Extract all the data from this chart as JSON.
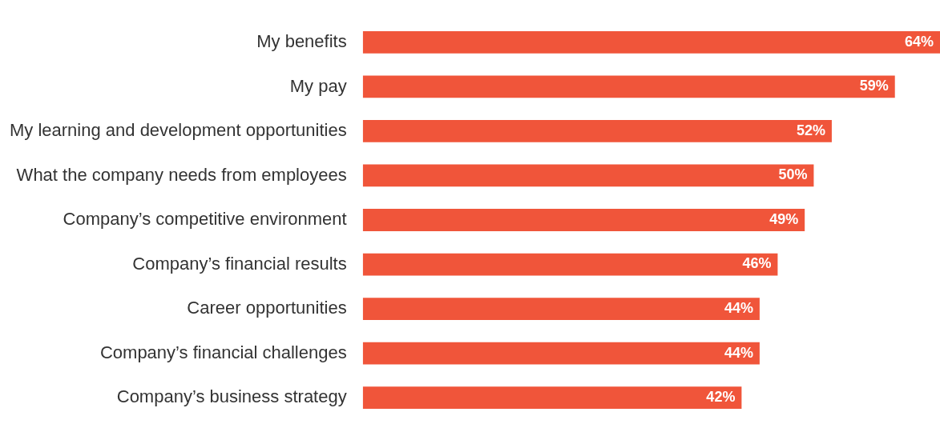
{
  "chart_data": {
    "type": "bar",
    "orientation": "horizontal",
    "categories": [
      "My benefits",
      "My pay",
      "My learning and development opportunities",
      "What the company needs from employees",
      "Company’s competitive environment",
      "Company’s financial results",
      "Career opportunities",
      "Company’s financial challenges",
      "Company’s business strategy"
    ],
    "values": [
      64,
      59,
      52,
      50,
      49,
      46,
      44,
      44,
      42
    ],
    "value_labels": [
      "64%",
      "59%",
      "52%",
      "50%",
      "49%",
      "46%",
      "44%",
      "44%",
      "42%"
    ],
    "color": "#f0553a"
  }
}
